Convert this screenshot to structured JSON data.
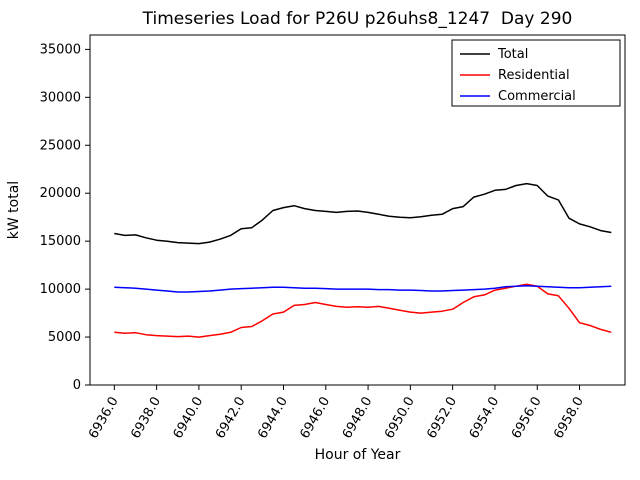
{
  "figure": {
    "title": "Timeseries Load for P26U p26uhs8_1247  Day 290",
    "xlabel": "Hour of Year",
    "ylabel": "kW total"
  },
  "chart_data": {
    "type": "line",
    "title": "Timeseries Load for P26U p26uhs8_1247  Day 290",
    "xlabel": "Hour of Year",
    "ylabel": "kW total",
    "grid": false,
    "legend_position": "upper right",
    "xlim": [
      6934.85,
      6960.15
    ],
    "ylim": [
      0,
      36500
    ],
    "x_ticks": [
      6936,
      6938,
      6940,
      6942,
      6944,
      6946,
      6948,
      6950,
      6952,
      6954,
      6956,
      6958
    ],
    "x_tick_labels": [
      "6936.0",
      "6938.0",
      "6940.0",
      "6942.0",
      "6944.0",
      "6946.0",
      "6948.0",
      "6950.0",
      "6952.0",
      "6954.0",
      "6956.0",
      "6958.0"
    ],
    "y_ticks": [
      0,
      5000,
      10000,
      15000,
      20000,
      25000,
      30000,
      35000
    ],
    "y_tick_labels": [
      "0",
      "5000",
      "10000",
      "15000",
      "20000",
      "25000",
      "30000",
      "35000"
    ],
    "x": [
      6936.0,
      6936.5,
      6937.0,
      6937.5,
      6938.0,
      6938.5,
      6939.0,
      6939.5,
      6940.0,
      6940.5,
      6941.0,
      6941.5,
      6942.0,
      6942.5,
      6943.0,
      6943.5,
      6944.0,
      6944.5,
      6945.0,
      6945.5,
      6946.0,
      6946.5,
      6947.0,
      6947.5,
      6948.0,
      6948.5,
      6949.0,
      6949.5,
      6950.0,
      6950.5,
      6951.0,
      6951.5,
      6952.0,
      6952.5,
      6953.0,
      6953.5,
      6954.0,
      6954.5,
      6955.0,
      6955.5,
      6956.0,
      6956.5,
      6957.0,
      6957.5,
      6958.0,
      6958.5,
      6959.0,
      6959.5
    ],
    "series": [
      {
        "name": "Total",
        "color": "#000000",
        "values": [
          15800,
          15600,
          15650,
          15350,
          15100,
          15000,
          14850,
          14800,
          14750,
          14900,
          15200,
          15600,
          16300,
          16400,
          17200,
          18200,
          18500,
          18700,
          18400,
          18200,
          18100,
          18000,
          18100,
          18150,
          18000,
          17800,
          17600,
          17500,
          17450,
          17550,
          17700,
          17800,
          18400,
          18600,
          19600,
          19900,
          20300,
          20400,
          20800,
          21000,
          20800,
          19700,
          19300,
          17400,
          16800,
          16500,
          16100,
          15900
        ]
      },
      {
        "name": "Residential",
        "color": "#ff0000",
        "values": [
          5500,
          5400,
          5450,
          5250,
          5150,
          5100,
          5050,
          5100,
          5000,
          5150,
          5300,
          5500,
          6000,
          6100,
          6700,
          7400,
          7600,
          8300,
          8400,
          8600,
          8400,
          8200,
          8100,
          8150,
          8100,
          8200,
          8000,
          7800,
          7600,
          7500,
          7600,
          7700,
          7900,
          8600,
          9200,
          9400,
          9900,
          10100,
          10300,
          10500,
          10300,
          9500,
          9300,
          8000,
          6500,
          6200,
          5800,
          5500
        ]
      },
      {
        "name": "Commercial",
        "color": "#0000ff",
        "values": [
          10200,
          10150,
          10100,
          10000,
          9900,
          9800,
          9700,
          9700,
          9750,
          9800,
          9900,
          10000,
          10050,
          10100,
          10150,
          10200,
          10200,
          10150,
          10100,
          10100,
          10050,
          10000,
          10000,
          10000,
          10000,
          9950,
          9950,
          9900,
          9900,
          9850,
          9800,
          9800,
          9850,
          9900,
          9950,
          10000,
          10100,
          10250,
          10300,
          10350,
          10300,
          10250,
          10200,
          10150,
          10150,
          10200,
          10250,
          10300
        ]
      }
    ]
  }
}
